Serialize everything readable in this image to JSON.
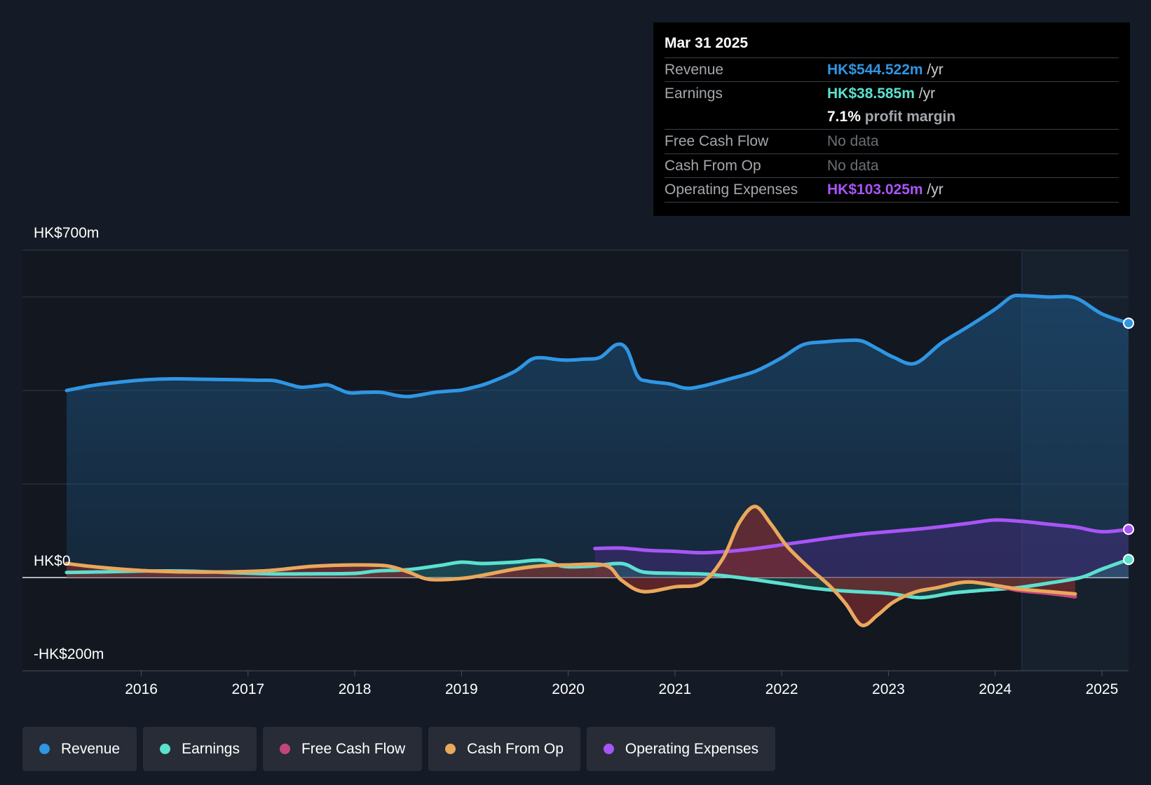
{
  "tooltip": {
    "date": "Mar 31 2025",
    "rows": {
      "revenue": {
        "label": "Revenue",
        "value": "HK$544.522m",
        "unit": " /yr",
        "color": "#2f96e4"
      },
      "earnings": {
        "label": "Earnings",
        "value": "HK$38.585m",
        "unit": " /yr",
        "color": "#5ce0cf"
      },
      "profit_margin": {
        "value": "7.1%",
        "text": " profit margin"
      },
      "fcf": {
        "label": "Free Cash Flow",
        "value": "No data"
      },
      "cfo": {
        "label": "Cash From Op",
        "value": "No data"
      },
      "opex": {
        "label": "Operating Expenses",
        "value": "HK$103.025m",
        "unit": " /yr",
        "color": "#a855f7"
      }
    }
  },
  "legend": [
    {
      "label": "Revenue",
      "color": "#2f96e4"
    },
    {
      "label": "Earnings",
      "color": "#5ce0cf"
    },
    {
      "label": "Free Cash Flow",
      "color": "#c4457c"
    },
    {
      "label": "Cash From Op",
      "color": "#e8a95a"
    },
    {
      "label": "Operating Expenses",
      "color": "#a855f7"
    }
  ],
  "chart_data": {
    "type": "line",
    "title": "",
    "y_axis_labels": {
      "top": "HK$700m",
      "zero": "HK$0",
      "bottom": "-HK$200m"
    },
    "ylim": [
      -200,
      700
    ],
    "xlim": [
      2015.3,
      2025.25
    ],
    "x_ticks": [
      {
        "v": 2016,
        "label": "2016"
      },
      {
        "v": 2017,
        "label": "2017"
      },
      {
        "v": 2018,
        "label": "2018"
      },
      {
        "v": 2019,
        "label": "2019"
      },
      {
        "v": 2020,
        "label": "2020"
      },
      {
        "v": 2021,
        "label": "2021"
      },
      {
        "v": 2022,
        "label": "2022"
      },
      {
        "v": 2023,
        "label": "2023"
      },
      {
        "v": 2024,
        "label": "2024"
      },
      {
        "v": 2025,
        "label": "2025"
      }
    ],
    "gridlines": [
      700,
      600,
      400,
      200,
      0
    ],
    "highlight_start": 2024.25,
    "series": [
      {
        "name": "Revenue",
        "color": "#2f96e4",
        "fill": true,
        "end_marker": true,
        "x": [
          2015.3,
          2015.55,
          2015.8,
          2016.05,
          2016.3,
          2016.6,
          2016.9,
          2017.1,
          2017.25,
          2017.4,
          2017.5,
          2017.65,
          2017.75,
          2017.85,
          2017.95,
          2018.1,
          2018.25,
          2018.4,
          2018.5,
          2018.6,
          2018.75,
          2018.9,
          2019.0,
          2019.1,
          2019.25,
          2019.5,
          2019.65,
          2019.75,
          2019.9,
          2020.0,
          2020.15,
          2020.3,
          2020.45,
          2020.55,
          2020.65,
          2020.75,
          2020.95,
          2021.1,
          2021.25,
          2021.5,
          2021.75,
          2022.0,
          2022.2,
          2022.4,
          2022.6,
          2022.75,
          2022.9,
          2023.05,
          2023.25,
          2023.5,
          2023.75,
          2024.0,
          2024.15,
          2024.25,
          2024.5,
          2024.75,
          2025.0,
          2025.25
        ],
        "y": [
          400,
          411,
          418,
          423,
          425,
          424,
          423,
          422,
          421,
          412,
          407,
          410,
          412,
          403,
          395,
          396,
          396,
          389,
          387,
          390,
          396,
          399,
          401,
          406,
          416,
          441,
          466,
          470,
          466,
          465,
          467,
          471,
          498,
          488,
          431,
          420,
          414,
          405,
          409,
          424,
          441,
          470,
          498,
          504,
          507,
          506,
          489,
          471,
          458,
          502,
          537,
          574,
          600,
          603,
          600,
          598,
          564,
          544
        ]
      },
      {
        "name": "Earnings",
        "color": "#5ce0cf",
        "fill": true,
        "end_marker": true,
        "x": [
          2015.3,
          2015.6,
          2016.0,
          2016.4,
          2016.8,
          2017.2,
          2017.6,
          2018.0,
          2018.2,
          2018.5,
          2018.8,
          2019.0,
          2019.2,
          2019.5,
          2019.75,
          2019.95,
          2020.2,
          2020.5,
          2020.7,
          2021.0,
          2021.3,
          2021.6,
          2022.0,
          2022.3,
          2022.6,
          2023.0,
          2023.3,
          2023.6,
          2023.9,
          2024.2,
          2024.5,
          2024.8,
          2025.0,
          2025.25
        ],
        "y": [
          11,
          12,
          14,
          14,
          11,
          8,
          8,
          9,
          14,
          17,
          26,
          33,
          30,
          33,
          37,
          24,
          24,
          30,
          12,
          9,
          7,
          0,
          -13,
          -23,
          -29,
          -34,
          -43,
          -33,
          -27,
          -22,
          -12,
          0,
          18,
          38.585
        ]
      },
      {
        "name": "Free Cash Flow",
        "color": "#c4457c",
        "fill": true,
        "x": [
          2015.3,
          2015.6,
          2016.0,
          2016.4,
          2016.8,
          2017.2,
          2017.6,
          2018.0,
          2018.3,
          2018.5,
          2018.7,
          2019.0,
          2019.2,
          2019.5,
          2019.75,
          2020.0,
          2020.35,
          2020.5,
          2020.7,
          2021.0,
          2021.25,
          2021.45,
          2021.6,
          2021.75,
          2021.9,
          2022.05,
          2022.25,
          2022.45,
          2022.6,
          2022.75,
          2022.9,
          2023.05,
          2023.25,
          2023.45,
          2023.7,
          2023.9,
          2024.2,
          2024.5,
          2024.75
        ],
        "y": [
          30,
          22,
          15,
          12,
          12,
          15,
          24,
          27,
          25,
          12,
          -4,
          -2,
          5,
          18,
          25,
          27,
          26,
          -6,
          -30,
          -20,
          -12,
          41,
          116,
          152,
          114,
          67,
          22,
          -18,
          -56,
          -102,
          -80,
          -52,
          -31,
          -22,
          -10,
          -13,
          -27,
          -34,
          -41
        ]
      },
      {
        "name": "Cash From Op",
        "color": "#e8a95a",
        "fill": true,
        "x": [
          2015.3,
          2015.6,
          2016.0,
          2016.4,
          2016.8,
          2017.2,
          2017.6,
          2018.0,
          2018.3,
          2018.5,
          2018.7,
          2019.0,
          2019.2,
          2019.5,
          2019.75,
          2020.0,
          2020.35,
          2020.5,
          2020.7,
          2021.0,
          2021.25,
          2021.45,
          2021.6,
          2021.75,
          2021.9,
          2022.05,
          2022.25,
          2022.45,
          2022.6,
          2022.75,
          2022.9,
          2023.05,
          2023.25,
          2023.45,
          2023.7,
          2023.9,
          2024.2,
          2024.5,
          2024.75
        ],
        "y": [
          30,
          22,
          15,
          12,
          12,
          15,
          24,
          27,
          25,
          12,
          -4,
          -2,
          5,
          18,
          25,
          27,
          26,
          -6,
          -30,
          -20,
          -12,
          41,
          116,
          152,
          114,
          67,
          22,
          -18,
          -56,
          -102,
          -80,
          -52,
          -31,
          -22,
          -10,
          -13,
          -24,
          -30,
          -35
        ]
      },
      {
        "name": "Operating Expenses",
        "color": "#a855f7",
        "fill": true,
        "end_marker": true,
        "x": [
          2020.25,
          2020.5,
          2020.75,
          2021.0,
          2021.25,
          2021.5,
          2021.75,
          2022.0,
          2022.25,
          2022.5,
          2022.75,
          2023.0,
          2023.25,
          2023.5,
          2023.75,
          2024.0,
          2024.25,
          2024.5,
          2024.75,
          2025.0,
          2025.25
        ],
        "y": [
          62,
          63,
          58,
          56,
          53,
          56,
          62,
          70,
          78,
          86,
          93,
          98,
          103,
          109,
          116,
          123,
          120,
          114,
          108,
          98,
          103.025
        ]
      }
    ]
  }
}
